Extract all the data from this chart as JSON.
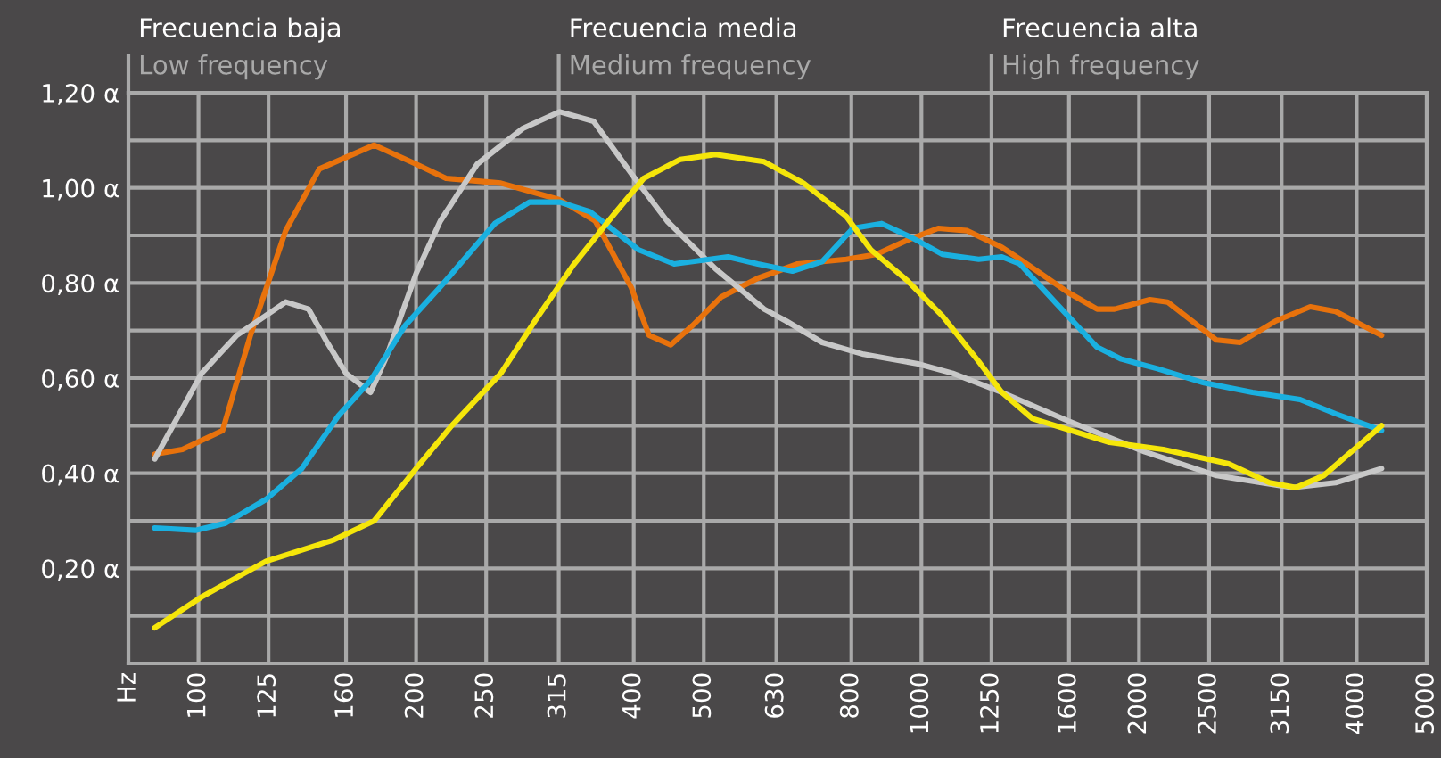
{
  "chart_data": {
    "type": "line",
    "log": "x",
    "xlim": [
      80,
      5000
    ],
    "xticks": [
      {
        "value": 80,
        "label": "Hz"
      },
      100,
      125,
      160,
      200,
      250,
      315,
      400,
      500,
      630,
      800,
      1000,
      1250,
      1600,
      2000,
      2500,
      3150,
      4000,
      5000
    ],
    "ylim": [
      0,
      1.2
    ],
    "yticks": [
      {
        "value": 0,
        "label": null
      },
      {
        "value": 0.1,
        "label": null
      },
      {
        "value": 0.2,
        "label": "0,20 α"
      },
      {
        "value": 0.3,
        "label": null
      },
      {
        "value": 0.4,
        "label": "0,40 α"
      },
      {
        "value": 0.5,
        "label": null
      },
      {
        "value": 0.6,
        "label": "0,60 α"
      },
      {
        "value": 0.7,
        "label": null
      },
      {
        "value": 0.8,
        "label": "0,80 α"
      },
      {
        "value": 0.9,
        "label": null
      },
      {
        "value": 1.0,
        "label": "1,00 α"
      },
      {
        "value": 1.1,
        "label": null
      },
      {
        "value": 1.2,
        "label": "1,20 α"
      }
    ],
    "grid": true,
    "annotations": [
      "Frecuencia baja\nLow frequency",
      "Frecuencia media\nMedium frequency",
      "Frecuencia alta\nHigh frequency"
    ],
    "series": [
      {
        "color": "#e8720c",
        "x": [
          87,
          95,
          108,
          118,
          132,
          147,
          175,
          200,
          220,
          262,
          316,
          354,
          397,
          420,
          450,
          482,
          528,
          594,
          674,
          787,
          866,
          956,
          1055,
          1157,
          1292,
          1368,
          1596,
          1750,
          1850,
          2070,
          2190,
          2560,
          2760,
          3090,
          3450,
          3740,
          4330
        ],
        "values": [
          0.44,
          0.45,
          0.49,
          0.69,
          0.91,
          1.04,
          1.09,
          1.05,
          1.02,
          1.01,
          0.975,
          0.93,
          0.79,
          0.69,
          0.67,
          0.71,
          0.77,
          0.81,
          0.84,
          0.85,
          0.86,
          0.89,
          0.915,
          0.91,
          0.875,
          0.85,
          0.78,
          0.745,
          0.745,
          0.765,
          0.76,
          0.68,
          0.675,
          0.72,
          0.75,
          0.74,
          0.69
        ]
      },
      {
        "color": "#c8c8c8",
        "x": [
          87,
          101,
          113,
          132,
          142,
          150,
          160,
          173,
          182,
          200,
          216,
          243,
          281,
          316,
          352,
          397,
          445,
          519,
          606,
          650,
          729,
          832,
          989,
          1105,
          1292,
          1596,
          2037,
          2560,
          3260,
          3740,
          4330
        ],
        "values": [
          0.43,
          0.61,
          0.69,
          0.76,
          0.745,
          0.68,
          0.61,
          0.57,
          0.645,
          0.82,
          0.93,
          1.05,
          1.125,
          1.16,
          1.14,
          1.03,
          0.93,
          0.83,
          0.745,
          0.72,
          0.675,
          0.65,
          0.63,
          0.61,
          0.57,
          0.51,
          0.445,
          0.395,
          0.37,
          0.38,
          0.41
        ]
      },
      {
        "color": "#1ab0e0",
        "x": [
          87,
          99,
          109,
          124,
          139,
          156,
          173,
          193,
          217,
          257,
          287,
          316,
          348,
          406,
          455,
          540,
          594,
          663,
          729,
          804,
          881,
          971,
          1070,
          1200,
          1292,
          1368,
          1530,
          1750,
          1890,
          2120,
          2460,
          2870,
          3340,
          3740,
          4330
        ],
        "values": [
          0.285,
          0.28,
          0.295,
          0.345,
          0.41,
          0.52,
          0.595,
          0.71,
          0.795,
          0.925,
          0.97,
          0.97,
          0.95,
          0.87,
          0.84,
          0.855,
          0.84,
          0.825,
          0.845,
          0.915,
          0.925,
          0.895,
          0.86,
          0.85,
          0.855,
          0.84,
          0.76,
          0.665,
          0.64,
          0.62,
          0.59,
          0.57,
          0.555,
          0.525,
          0.49
        ]
      },
      {
        "color": "#f5e60a",
        "x": [
          87,
          101,
          124,
          154,
          175,
          200,
          224,
          262,
          292,
          329,
          369,
          413,
          464,
          519,
          606,
          687,
          787,
          851,
          956,
          1070,
          1200,
          1292,
          1424,
          1820,
          2160,
          2660,
          3030,
          3300,
          3600,
          4330
        ],
        "values": [
          0.075,
          0.14,
          0.215,
          0.26,
          0.3,
          0.41,
          0.5,
          0.61,
          0.72,
          0.835,
          0.93,
          1.02,
          1.06,
          1.07,
          1.055,
          1.01,
          0.94,
          0.87,
          0.805,
          0.73,
          0.635,
          0.57,
          0.515,
          0.465,
          0.45,
          0.42,
          0.38,
          0.37,
          0.395,
          0.5
        ]
      }
    ]
  }
}
